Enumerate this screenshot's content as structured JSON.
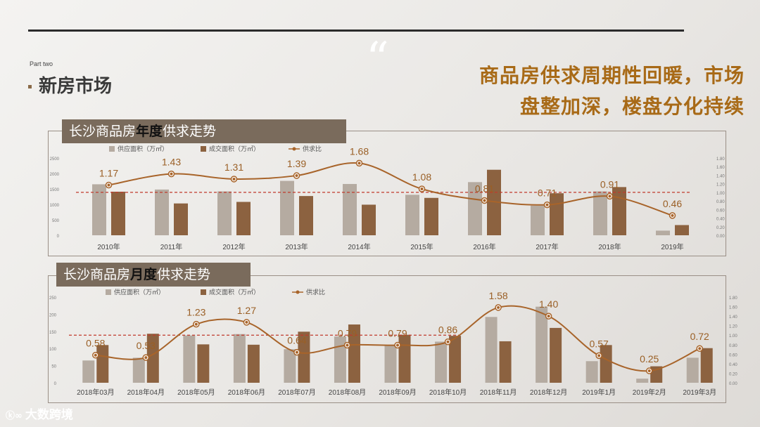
{
  "header": {
    "part": "Part two",
    "section": "新房市场",
    "quote_mark": "“",
    "headline_line1": "商品房供求周期性回暖，市场",
    "headline_line2": "盘整加深，楼盘分化持续"
  },
  "annual": {
    "title_pre": "长沙商品房",
    "title_hl": "年度",
    "title_post": "供求走势"
  },
  "monthly": {
    "title_pre": "长沙商品房",
    "title_hl": "月度",
    "title_post": "供求走势"
  },
  "footer": {
    "logo_text": "大数跨境"
  },
  "colors": {
    "supply": "#b5aba1",
    "deal": "#8c6240",
    "ratio": "#a8642a",
    "ref": "#c0392b",
    "accent": "#a86a17"
  },
  "chart_data": [
    {
      "type": "bar",
      "categories": [
        "2010年",
        "2011年",
        "2012年",
        "2013年",
        "2014年",
        "2015年",
        "2016年",
        "2017年",
        "2018年",
        "2019年"
      ],
      "series": [
        {
          "name": "供应面积（万㎡）",
          "values": [
            1650,
            1480,
            1420,
            1760,
            1660,
            1310,
            1720,
            960,
            1420,
            150
          ]
        },
        {
          "name": "成交面积（万㎡）",
          "values": [
            1410,
            1030,
            1080,
            1270,
            990,
            1210,
            2120,
            1360,
            1560,
            330
          ]
        },
        {
          "name": "供求比",
          "type": "line",
          "values": [
            1.17,
            1.43,
            1.31,
            1.39,
            1.68,
            1.08,
            0.81,
            0.71,
            0.91,
            0.46
          ]
        }
      ],
      "ylim": [
        0,
        2500
      ],
      "yticks": [
        "2500",
        "2000",
        "1500",
        "1000",
        "500",
        "0"
      ],
      "y2lim": [
        0,
        1.8
      ],
      "y2ticks": [
        "1.80",
        "1.60",
        "1.40",
        "1.20",
        "1.00",
        "0.80",
        "0.60",
        "0.40",
        "0.20",
        "0.00"
      ],
      "ratio_labels": [
        "1.17",
        "1.43",
        "1.31",
        "1.39",
        "1.68",
        "1.08",
        "0.81",
        "0.71",
        "0.91",
        "0.46"
      ],
      "reference_line": 1.0
    },
    {
      "type": "bar",
      "categories": [
        "2018年03月",
        "2018年04月",
        "2018年05月",
        "2018年06月",
        "2018年07月",
        "2018年08月",
        "2018年09月",
        "2018年10月",
        "2018年11月",
        "2018年12月",
        "2019年1月",
        "2019年2月",
        "2019年3月"
      ],
      "series": [
        {
          "name": "供应面积（万㎡）",
          "values": [
            65,
            73,
            138,
            142,
            98,
            135,
            110,
            120,
            192,
            222,
            63,
            12,
            73
          ]
        },
        {
          "name": "成交面积（万㎡）",
          "values": [
            110,
            143,
            112,
            111,
            149,
            170,
            140,
            137,
            121,
            160,
            110,
            48,
            101
          ]
        },
        {
          "name": "供求比",
          "type": "line",
          "values": [
            0.58,
            0.53,
            1.23,
            1.27,
            0.64,
            0.79,
            0.79,
            0.86,
            1.58,
            1.4,
            0.57,
            0.25,
            0.72
          ]
        }
      ],
      "ylim": [
        0,
        250
      ],
      "yticks": [
        "250",
        "200",
        "150",
        "100",
        "50",
        "0"
      ],
      "y2lim": [
        0,
        1.8
      ],
      "y2ticks": [
        "1.80",
        "1.60",
        "1.40",
        "1.20",
        "1.00",
        "0.80",
        "0.60",
        "0.40",
        "0.20",
        "0.00"
      ],
      "ratio_labels": [
        "0.58",
        "0.53",
        "1.23",
        "1.27",
        "0.64",
        "0.79",
        "0.79",
        "0.86",
        "1.58",
        "1.40",
        "0.57",
        "0.25",
        "0.72"
      ],
      "reference_line": 1.0
    }
  ]
}
